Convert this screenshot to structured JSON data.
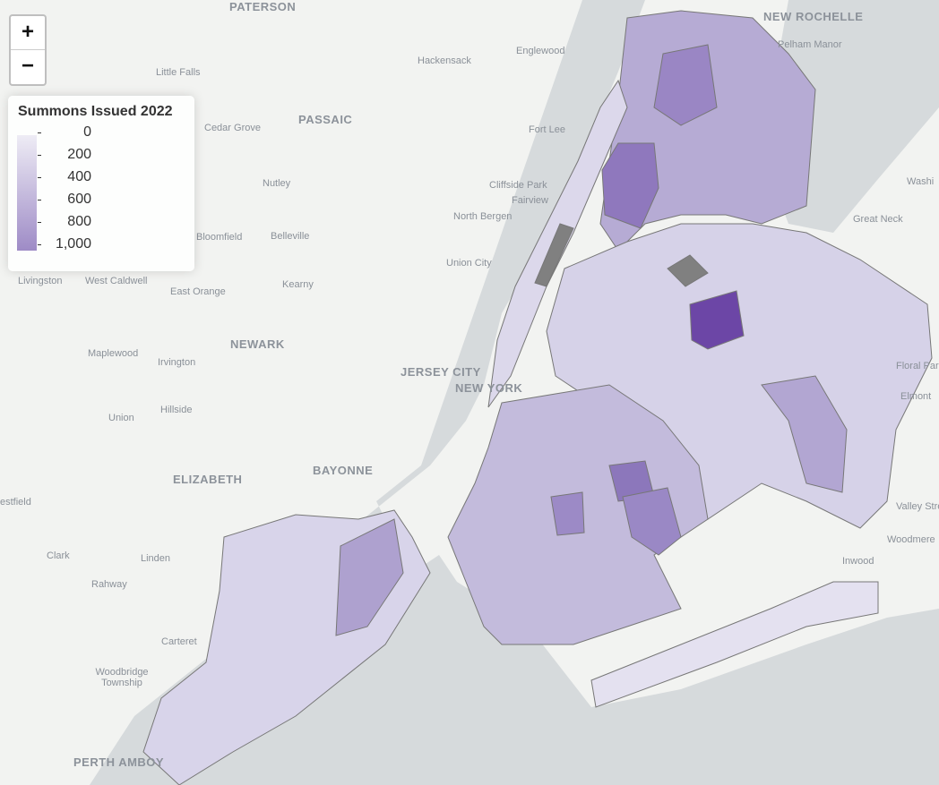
{
  "map": {
    "zoom_in_label": "+",
    "zoom_out_label": "−",
    "legend": {
      "title": "Summons Issued 2022",
      "ticks": [
        "0",
        "200",
        "400",
        "600",
        "800",
        "1,000"
      ],
      "color_low": "#eeecf5",
      "color_high": "#9e8bc6",
      "no_data_color": "#808080"
    },
    "place_labels": [
      "PATERSON",
      "NEW ROCHELLE",
      "Pelham Manor",
      "Little Falls",
      "Hackensack",
      "Englewood",
      "PASSAIC",
      "Cedar Grove",
      "Fort Lee",
      "West Caldwell",
      "Nutley",
      "Cliffside Park",
      "Fairview",
      "North Bergen",
      "Great Neck",
      "Bloomfield",
      "Belleville",
      "Union City",
      "East Orange",
      "Kearny",
      "NEWARK",
      "Maplewood",
      "Irvington",
      "JERSEY CITY",
      "NEW YORK",
      "Floral Park",
      "Elmont",
      "Union",
      "Hillside",
      "ELIZABETH",
      "BAYONNE",
      "estfield",
      "Valley Stream",
      "Clark",
      "Linden",
      "Woodmere",
      "Inwood",
      "Rahway",
      "Carteret",
      "Woodbridge Township",
      "PERTH AMBOY",
      "Livingston",
      "Washi"
    ]
  }
}
